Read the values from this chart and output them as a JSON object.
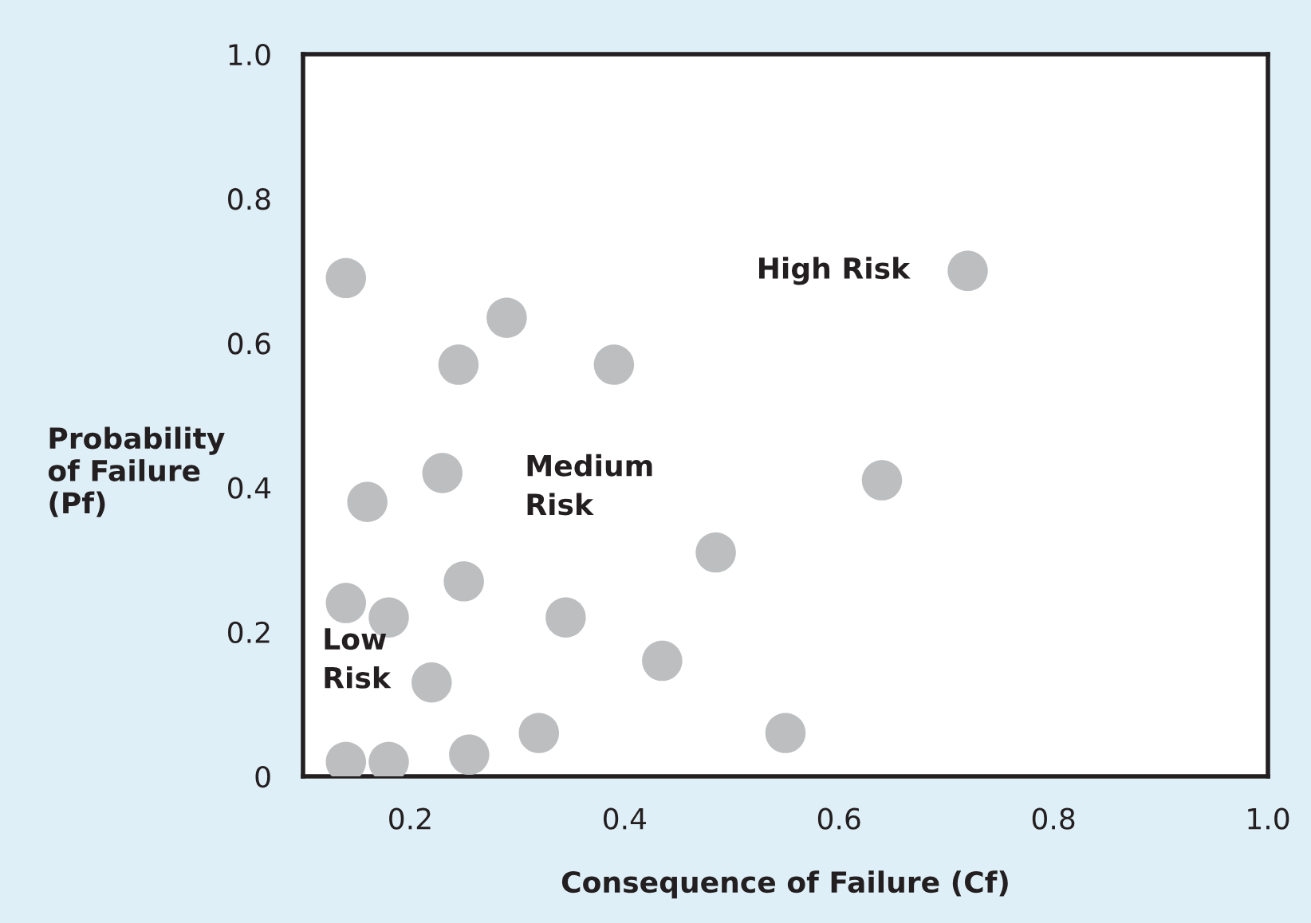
{
  "chart_data": {
    "type": "scatter",
    "xlabel": "Consequence of Failure (Cf)",
    "ylabel": "Probability\nof Failure\n(Pf)",
    "x": [
      0.14,
      0.245,
      0.29,
      0.39,
      0.23,
      0.16,
      0.14,
      0.18,
      0.25,
      0.345,
      0.22,
      0.435,
      0.485,
      0.55,
      0.32,
      0.255,
      0.18,
      0.14,
      0.64,
      0.72
    ],
    "values": [
      0.69,
      0.57,
      0.635,
      0.57,
      0.42,
      0.38,
      0.24,
      0.22,
      0.27,
      0.22,
      0.13,
      0.16,
      0.31,
      0.06,
      0.06,
      0.03,
      0.02,
      0.02,
      0.41,
      0.7
    ],
    "color": "#bcbec0",
    "marker": "circle",
    "xlim": [
      0.1,
      1.0
    ],
    "ylim": [
      0,
      1.0
    ],
    "xticks": [
      0.2,
      0.4,
      0.6,
      0.8,
      {
        "value": 1,
        "label": "1.0"
      }
    ],
    "yticks": [
      0,
      0.2,
      0.4,
      0.6,
      0.8,
      {
        "value": 1,
        "label": "1.0"
      }
    ],
    "grid": false,
    "annotations": [
      "High Risk",
      "Medium\nRisk",
      "Low\nRisk"
    ]
  }
}
